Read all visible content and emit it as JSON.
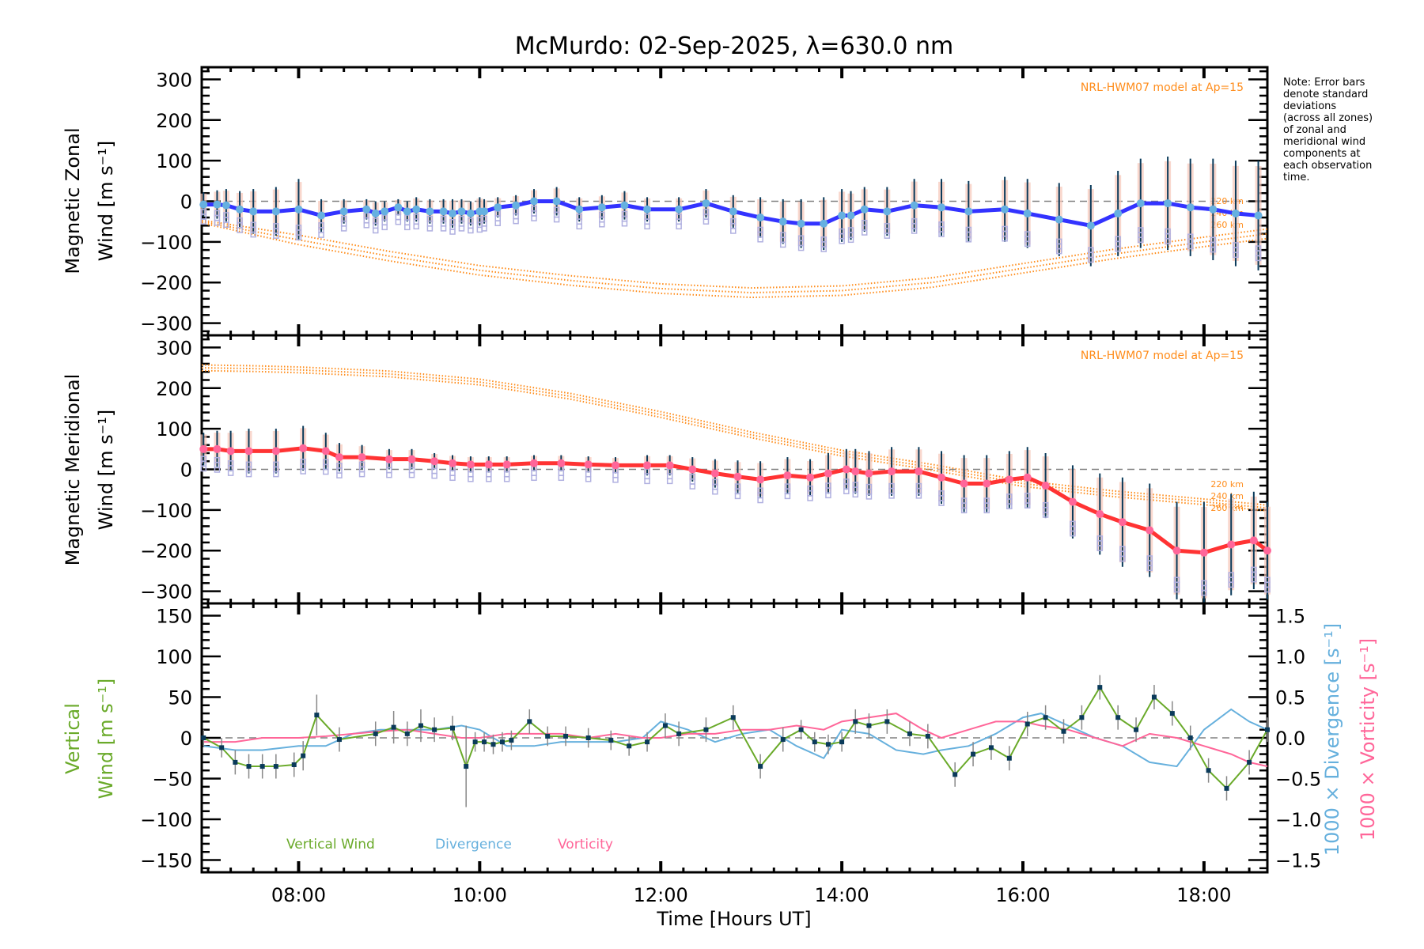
{
  "chart_data": {
    "type": "line",
    "title": "McMurdo: 02-Sep-2025, λ=630.0 nm",
    "xlabel": "Time [Hours UT]",
    "xlim": [
      6.93,
      18.7
    ],
    "xticks": [
      {
        "value": 8,
        "label": "08:00"
      },
      {
        "value": 10,
        "label": "10:00"
      },
      {
        "value": 12,
        "label": "12:00"
      },
      {
        "value": 14,
        "label": "14:00"
      },
      {
        "value": 16,
        "label": "16:00"
      },
      {
        "value": 18,
        "label": "18:00"
      }
    ],
    "note": [
      "Note: Error bars",
      "denote standard",
      "deviations",
      "(across all zones)",
      "of zonal and",
      "meridional wind",
      "components at",
      "each observation",
      "time."
    ],
    "colors": {
      "zonal": "#3333ff",
      "zonal_marker": "#66b0e0",
      "meridional": "#ff3333",
      "meridional_marker": "#ff6699",
      "model": "#ff8c1a",
      "vertical": "#6aaa2a",
      "divergence": "#66b0dd",
      "vorticity": "#ff6699",
      "errorbar": "#0a3a5a",
      "scatter": "#b0b0e0",
      "zero": "#808080"
    },
    "panels": [
      {
        "id": "zonal",
        "ylabel_line1": "Magnetic Zonal",
        "ylabel_line2": "Wind [m s⁻¹]",
        "ylim": [
          -330,
          330
        ],
        "yticks": [
          -300,
          -200,
          -100,
          0,
          100,
          200,
          300
        ],
        "model_label": "NRL-HWM07 model at Ap=15",
        "alt_labels": [
          "220 km",
          "240 km",
          "260 km"
        ],
        "model": {
          "x": [
            6.93,
            8,
            9,
            10,
            11,
            12,
            13,
            14,
            15,
            16,
            17,
            18,
            18.7
          ],
          "y": [
            -50,
            -95,
            -135,
            -170,
            -195,
            -215,
            -225,
            -220,
            -200,
            -165,
            -130,
            -100,
            -80
          ]
        },
        "series": {
          "name": "Zonal wind",
          "x": [
            6.95,
            7.1,
            7.2,
            7.35,
            7.5,
            7.75,
            8.0,
            8.25,
            8.5,
            8.75,
            8.85,
            8.95,
            9.1,
            9.2,
            9.3,
            9.45,
            9.6,
            9.7,
            9.8,
            9.9,
            10.0,
            10.05,
            10.2,
            10.4,
            10.6,
            10.85,
            11.1,
            11.35,
            11.6,
            11.85,
            12.2,
            12.5,
            12.8,
            13.1,
            13.35,
            13.55,
            13.8,
            14.0,
            14.1,
            14.25,
            14.5,
            14.8,
            15.1,
            15.4,
            15.8,
            16.05,
            16.4,
            16.75,
            17.05,
            17.3,
            17.6,
            17.85,
            18.1,
            18.35,
            18.6
          ],
          "y": [
            -8,
            -8,
            -10,
            -20,
            -25,
            -25,
            -20,
            -35,
            -25,
            -20,
            -30,
            -25,
            -15,
            -25,
            -20,
            -25,
            -25,
            -30,
            -25,
            -30,
            -25,
            -25,
            -15,
            -10,
            0,
            0,
            -20,
            -15,
            -10,
            -20,
            -20,
            -5,
            -25,
            -40,
            -50,
            -55,
            -55,
            -35,
            -35,
            -20,
            -25,
            -10,
            -15,
            -25,
            -20,
            -30,
            -45,
            -60,
            -30,
            -5,
            -5,
            -15,
            -20,
            -30,
            -35
          ]
        },
        "errorbars_halfwidth": [
          30,
          35,
          40,
          45,
          55,
          60,
          75,
          40,
          30,
          25,
          30,
          25,
          20,
          25,
          30,
          30,
          30,
          35,
          30,
          30,
          35,
          30,
          25,
          25,
          30,
          35,
          30,
          30,
          35,
          30,
          30,
          35,
          40,
          50,
          55,
          60,
          65,
          65,
          60,
          55,
          60,
          65,
          70,
          75,
          80,
          85,
          90,
          100,
          105,
          110,
          115,
          120,
          125,
          130,
          135
        ]
      },
      {
        "id": "meridional",
        "ylabel_line1": "Magnetic Meridional",
        "ylabel_line2": "Wind [m s⁻¹]",
        "ylim": [
          -330,
          330
        ],
        "yticks": [
          -300,
          -200,
          -100,
          0,
          100,
          200,
          300
        ],
        "model_label": "NRL-HWM07 model at Ap=15",
        "alt_labels": [
          "220 km",
          "240 km",
          "260 km"
        ],
        "model": {
          "x": [
            6.93,
            7.5,
            8,
            9,
            10,
            11,
            12,
            13,
            14,
            15,
            16,
            17,
            18,
            18.7
          ],
          "y": [
            250,
            248,
            245,
            235,
            215,
            180,
            135,
            85,
            40,
            5,
            -35,
            -60,
            -80,
            -95
          ]
        },
        "series": {
          "name": "Meridional wind",
          "x": [
            6.95,
            7.1,
            7.25,
            7.45,
            7.75,
            8.05,
            8.3,
            8.45,
            8.7,
            9.0,
            9.25,
            9.5,
            9.7,
            9.9,
            10.1,
            10.3,
            10.6,
            10.9,
            11.2,
            11.5,
            11.85,
            12.1,
            12.35,
            12.6,
            12.85,
            13.1,
            13.4,
            13.65,
            13.85,
            14.05,
            14.15,
            14.3,
            14.55,
            14.85,
            15.1,
            15.35,
            15.6,
            15.85,
            16.05,
            16.25,
            16.55,
            16.85,
            17.1,
            17.4,
            17.7,
            18.0,
            18.3,
            18.55,
            18.7
          ],
          "y": [
            50,
            50,
            45,
            45,
            45,
            52,
            45,
            30,
            30,
            25,
            25,
            20,
            15,
            12,
            12,
            12,
            15,
            15,
            12,
            10,
            10,
            10,
            0,
            -10,
            -18,
            -25,
            -15,
            -20,
            -10,
            0,
            -5,
            -10,
            -5,
            -5,
            -20,
            -35,
            -35,
            -25,
            -20,
            -40,
            -80,
            -110,
            -130,
            -150,
            -200,
            -205,
            -185,
            -175,
            -200
          ]
        },
        "errorbars_halfwidth": [
          40,
          45,
          50,
          55,
          55,
          55,
          45,
          35,
          30,
          25,
          25,
          20,
          20,
          20,
          20,
          20,
          20,
          20,
          20,
          20,
          25,
          25,
          30,
          35,
          40,
          45,
          45,
          45,
          50,
          50,
          55,
          55,
          60,
          60,
          65,
          70,
          70,
          70,
          75,
          80,
          90,
          100,
          110,
          115,
          120,
          125,
          125,
          120,
          120
        ]
      },
      {
        "id": "vertical",
        "ylabel_line1": "Vertical",
        "ylabel_line2": "Wind [m s⁻¹]",
        "ylim": [
          -165,
          165
        ],
        "yticks": [
          -150,
          -100,
          -50,
          0,
          50,
          100,
          150
        ],
        "y2lim": [
          -1.65,
          1.65
        ],
        "y2ticks": [
          -1.5,
          -1.0,
          -0.5,
          0.0,
          0.5,
          1.0,
          1.5
        ],
        "y2label_div": "1000 × Divergence [s⁻¹]",
        "y2label_vor": "1000 × Vorticity [s⁻¹]",
        "legend": [
          "Vertical Wind",
          "Divergence",
          "Vorticity"
        ],
        "vertical_wind": {
          "x": [
            6.95,
            7.15,
            7.3,
            7.45,
            7.6,
            7.75,
            7.95,
            8.05,
            8.2,
            8.45,
            8.85,
            9.05,
            9.2,
            9.35,
            9.5,
            9.7,
            9.85,
            9.95,
            10.05,
            10.15,
            10.25,
            10.35,
            10.55,
            10.75,
            10.95,
            11.2,
            11.45,
            11.65,
            11.85,
            12.05,
            12.2,
            12.5,
            12.8,
            13.1,
            13.35,
            13.55,
            13.7,
            13.85,
            14.0,
            14.15,
            14.3,
            14.5,
            14.75,
            14.95,
            15.25,
            15.45,
            15.65,
            15.85,
            16.05,
            16.25,
            16.45,
            16.65,
            16.85,
            17.05,
            17.25,
            17.45,
            17.65,
            17.85,
            18.05,
            18.25,
            18.5,
            18.7
          ],
          "y": [
            0,
            -12,
            -30,
            -35,
            -35,
            -35,
            -33,
            -22,
            28,
            -2,
            5,
            13,
            5,
            15,
            10,
            12,
            -35,
            -5,
            -5,
            -8,
            -5,
            -3,
            20,
            2,
            2,
            0,
            -3,
            -10,
            -5,
            15,
            5,
            10,
            25,
            -35,
            -2,
            10,
            -5,
            -8,
            -5,
            20,
            15,
            20,
            5,
            2,
            -45,
            -20,
            -12,
            -25,
            17,
            25,
            8,
            25,
            62,
            25,
            10,
            50,
            30,
            0,
            -40,
            -62,
            -30,
            10
          ]
        },
        "divergence": {
          "x": [
            6.95,
            7.3,
            7.6,
            8.0,
            8.3,
            8.6,
            8.9,
            9.2,
            9.5,
            9.8,
            10.0,
            10.3,
            10.6,
            10.9,
            11.2,
            11.5,
            11.8,
            12.0,
            12.3,
            12.6,
            12.9,
            13.2,
            13.5,
            13.8,
            14.0,
            14.3,
            14.6,
            14.9,
            15.1,
            15.4,
            15.7,
            16.0,
            16.2,
            16.5,
            16.8,
            17.1,
            17.4,
            17.7,
            18.0,
            18.3,
            18.5,
            18.7
          ],
          "y": [
            -0.1,
            -0.15,
            -0.15,
            -0.1,
            -0.1,
            0.05,
            0.1,
            0.1,
            0.1,
            0.15,
            0.1,
            -0.1,
            -0.1,
            -0.05,
            -0.05,
            -0.05,
            0.0,
            0.2,
            0.1,
            -0.05,
            0.05,
            0.1,
            -0.1,
            -0.25,
            0.1,
            0.05,
            -0.15,
            -0.2,
            -0.15,
            -0.1,
            0.05,
            0.25,
            0.3,
            0.15,
            0.0,
            -0.1,
            -0.3,
            -0.35,
            0.1,
            0.35,
            0.2,
            0.1
          ]
        },
        "vorticity": {
          "x": [
            6.95,
            7.3,
            7.6,
            8.0,
            8.3,
            8.6,
            8.9,
            9.2,
            9.5,
            9.8,
            10.0,
            10.3,
            10.6,
            10.9,
            11.2,
            11.5,
            11.8,
            12.0,
            12.3,
            12.6,
            12.9,
            13.2,
            13.5,
            13.8,
            14.0,
            14.3,
            14.6,
            14.9,
            15.1,
            15.4,
            15.7,
            16.0,
            16.2,
            16.5,
            16.8,
            17.1,
            17.4,
            17.7,
            18.0,
            18.3,
            18.5,
            18.7
          ],
          "y": [
            -0.05,
            -0.05,
            0.0,
            0.0,
            0.02,
            0.05,
            0.08,
            0.1,
            0.05,
            0.0,
            0.0,
            0.05,
            0.05,
            0.05,
            0.0,
            0.05,
            0.0,
            0.0,
            0.05,
            0.05,
            0.1,
            0.1,
            0.15,
            0.1,
            0.2,
            0.25,
            0.3,
            0.1,
            0.0,
            0.1,
            0.2,
            0.2,
            0.15,
            0.1,
            0.0,
            -0.1,
            0.05,
            0.0,
            -0.1,
            -0.2,
            -0.3,
            -0.35
          ]
        },
        "errorbars_halfwidth": [
          10,
          12,
          15,
          15,
          15,
          15,
          15,
          18,
          25,
          15,
          15,
          20,
          15,
          20,
          15,
          15,
          50,
          12,
          12,
          12,
          12,
          12,
          15,
          12,
          12,
          12,
          12,
          12,
          12,
          15,
          15,
          15,
          15,
          15,
          15,
          12,
          12,
          12,
          12,
          15,
          15,
          15,
          15,
          15,
          15,
          15,
          15,
          15,
          15,
          15,
          15,
          15,
          15,
          15,
          15,
          15,
          15,
          15,
          15,
          15,
          15,
          15
        ]
      }
    ]
  }
}
